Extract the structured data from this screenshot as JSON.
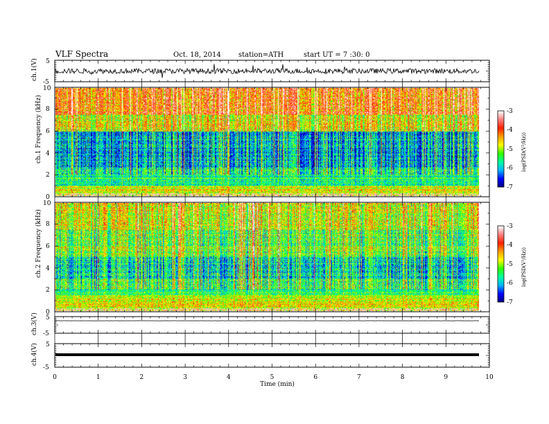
{
  "header": {
    "title": "VLF Spectra",
    "date": "Oct. 18, 2014",
    "station": "station=ATH",
    "start": "start UT = 7 :30: 0"
  },
  "chart_data": [
    {
      "name": "ch1-waveform",
      "type": "line",
      "ylabel": "ch.1(V)",
      "ylim": [
        -5,
        5
      ],
      "yticks": [
        "5",
        "-5"
      ],
      "level": 0,
      "noise_amplitude": 1.2,
      "xlim": [
        0,
        10
      ]
    },
    {
      "name": "ch1-spectrogram",
      "type": "heatmap",
      "ylabel": "ch.1 Frequency (kHz)",
      "ylim": [
        0,
        10
      ],
      "yticks": [
        "0",
        "2",
        "4",
        "6",
        "8",
        "10"
      ],
      "xlim": [
        0,
        9.82
      ],
      "colorbar": {
        "label": "log(PSD(V²/Hz))",
        "range": [
          -7,
          -3
        ],
        "ticks": [
          "-3",
          "-4",
          "-5",
          "-6",
          "-7"
        ]
      }
    },
    {
      "name": "ch2-spectrogram",
      "type": "heatmap",
      "ylabel": "ch.2 Frequency (kHz)",
      "ylim": [
        0,
        10
      ],
      "yticks": [
        "0",
        "2",
        "4",
        "6",
        "8",
        "10"
      ],
      "xlim": [
        0,
        9.82
      ],
      "colorbar": {
        "label": "log(PSD(V²/Hz))",
        "range": [
          -7,
          -3
        ],
        "ticks": [
          "-3",
          "-4",
          "-5",
          "-6",
          "-7"
        ]
      }
    },
    {
      "name": "ch3-waveform",
      "type": "line",
      "ylabel": "ch.3(V)",
      "ylim": [
        -5,
        5
      ],
      "yticks": [
        "5",
        "-5"
      ],
      "level": 2.5,
      "noise_amplitude": 0.05,
      "xlim": [
        0,
        9.82
      ]
    },
    {
      "name": "ch4-waveform",
      "type": "line",
      "ylabel": "ch.4(V)",
      "ylim": [
        -5,
        5
      ],
      "yticks": [
        "5",
        "-5"
      ],
      "level": 0,
      "noise_amplitude": 0.0,
      "xlim": [
        0,
        9.82
      ]
    }
  ],
  "xaxis": {
    "label": "Time (min)",
    "ticks": [
      "0",
      "1",
      "2",
      "3",
      "4",
      "5",
      "6",
      "7",
      "8",
      "9",
      "10"
    ],
    "range": [
      0,
      10
    ]
  },
  "colors": {
    "cmap": [
      "#00007f",
      "#0000ff",
      "#00b4ff",
      "#00ffa0",
      "#30ff00",
      "#ffff00",
      "#ffa000",
      "#ff2000",
      "#ff8080",
      "#ffffff"
    ]
  }
}
